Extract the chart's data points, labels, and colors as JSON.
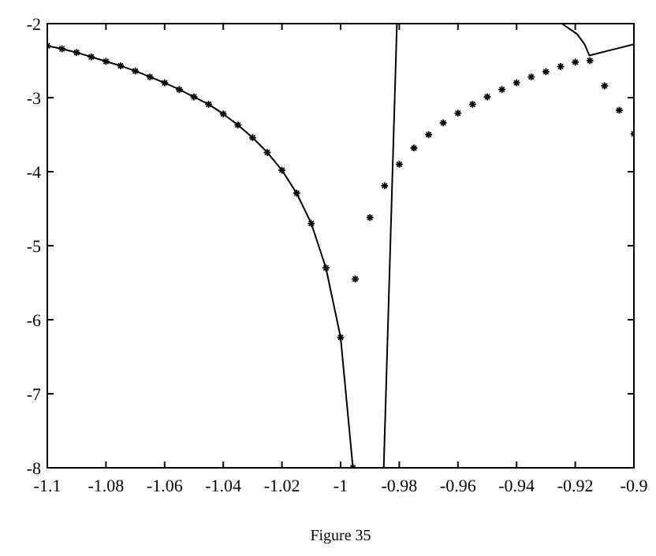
{
  "chart_data": {
    "type": "line",
    "annotations": [
      "Figure 35"
    ],
    "xlim": [
      -1.1,
      -0.9
    ],
    "ylim": [
      -8,
      -2
    ],
    "xticks": [
      -1.1,
      -1.08,
      -1.06,
      -1.04,
      -1.02,
      -1,
      -0.98,
      -0.96,
      -0.94,
      -0.92,
      -0.9
    ],
    "yticks": [
      -8,
      -7,
      -6,
      -5,
      -4,
      -3,
      -2
    ],
    "grid": false,
    "line_style": "solid",
    "series": [
      {
        "color": "#000000",
        "marker": "cross",
        "x": [
          -1.1,
          -1.095,
          -1.09,
          -1.085,
          -1.08,
          -1.075,
          -1.07,
          -1.065,
          -1.06,
          -1.055,
          -1.05,
          -1.045,
          -1.04,
          -1.035,
          -1.03,
          -1.025,
          -1.02,
          -1.015,
          -1.01,
          -1.005,
          -1.0,
          -0.9958
        ],
        "values": [
          -2.3,
          -2.34,
          -2.39,
          -2.45,
          -2.51,
          -2.57,
          -2.64,
          -2.72,
          -2.8,
          -2.89,
          -2.99,
          -3.09,
          -3.22,
          -3.37,
          -3.54,
          -3.74,
          -3.98,
          -4.29,
          -4.7,
          -5.3,
          -6.24,
          -8
        ]
      },
      {
        "color": "#000000",
        "x": [
          -0.9853,
          -0.9808
        ],
        "values": [
          -8,
          -2
        ]
      },
      {
        "color": "#000000",
        "x": [
          -0.9246,
          -0.9194,
          -0.9168,
          -0.9152,
          -0.9
        ],
        "values": [
          -2,
          -2.14,
          -2.28,
          -2.43,
          -2.28
        ]
      },
      {
        "type": "scatter",
        "color": "#000000",
        "marker": "cross",
        "x": [
          -0.995,
          -0.99,
          -0.985,
          -0.98,
          -0.975,
          -0.97,
          -0.965,
          -0.96,
          -0.955,
          -0.95,
          -0.945,
          -0.94,
          -0.935,
          -0.93,
          -0.925,
          -0.92,
          -0.915,
          -0.91,
          -0.905,
          -0.9
        ],
        "values": [
          -5.45,
          -4.62,
          -4.19,
          -3.9,
          -3.68,
          -3.5,
          -3.34,
          -3.21,
          -3.09,
          -2.99,
          -2.89,
          -2.8,
          -2.72,
          -2.65,
          -2.58,
          -2.52,
          -2.5,
          -2.84,
          -3.17,
          -3.49
        ]
      }
    ]
  }
}
